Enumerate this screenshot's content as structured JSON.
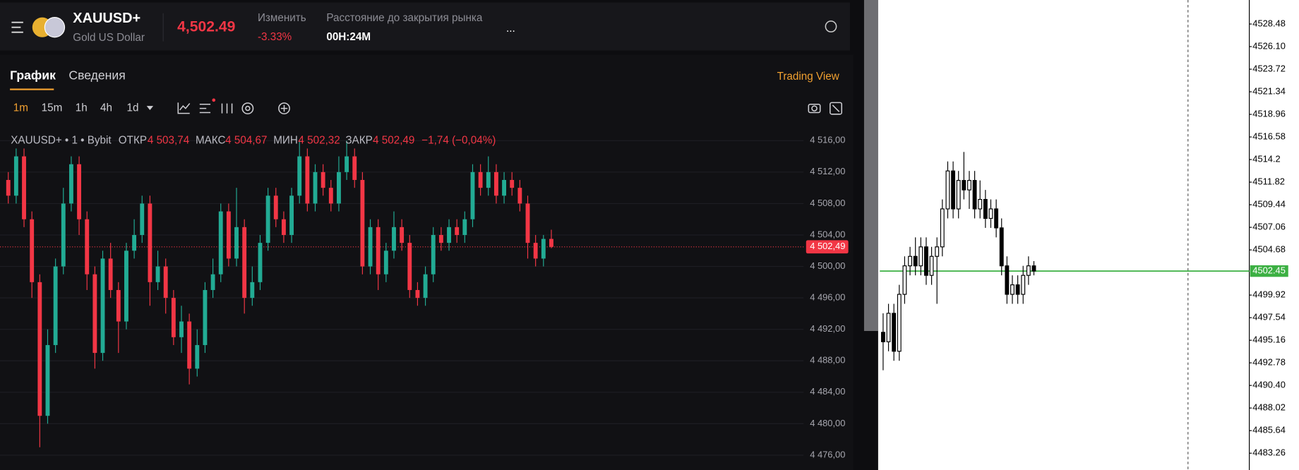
{
  "header": {
    "symbol": "XAUUSD+",
    "name": "Gold US Dollar",
    "price": "4,502.49",
    "change_label": "Изменить",
    "change": "-3.33%",
    "close_label": "Расстояние до закрытия рынка",
    "close_time": "00H:24M",
    "more": "..."
  },
  "tabs": [
    "График",
    "Сведения",
    "Trading View"
  ],
  "toolbar": {
    "timeframes": [
      "1m",
      "15m",
      "1h",
      "4h",
      "1d"
    ]
  },
  "chart_data": [
    {
      "type": "candlestick",
      "legend_line": [
        "XAUUSD+ • 1 • Bybit",
        "ОТКР",
        "4 503,74",
        "МАКС",
        "4 504,67",
        "МИН",
        "4 502,32",
        "ЗАКР",
        "4 502,49",
        "−1,74 (−0,04%)"
      ],
      "up_color": "#22ab94",
      "down_color": "#f23645",
      "grid": true,
      "ylim": [
        4474.11,
        4517.89
      ],
      "yticks": [
        {
          "value": 4516,
          "label": "4 516,00"
        },
        {
          "value": 4512,
          "label": "4 512,00"
        },
        {
          "value": 4508,
          "label": "4 508,00"
        },
        {
          "value": 4504,
          "label": "4 504,00"
        },
        {
          "value": 4500,
          "label": "4 500,00"
        },
        {
          "value": 4496,
          "label": "4 496,00"
        },
        {
          "value": 4492,
          "label": "4 492,00"
        },
        {
          "value": 4488,
          "label": "4 488,00"
        },
        {
          "value": 4484,
          "label": "4 484,00"
        },
        {
          "value": 4480,
          "label": "4 480,00"
        },
        {
          "value": 4476,
          "label": "4 476,00"
        }
      ],
      "price_line": {
        "value": 4502.49,
        "label": "4 502,49",
        "color": "#f23645"
      },
      "candles": [
        [
          4511,
          4512,
          4508,
          4509
        ],
        [
          4509,
          4515,
          4508,
          4514
        ],
        [
          4514,
          4515,
          4505,
          4506
        ],
        [
          4506,
          4507,
          4496,
          4498
        ],
        [
          4498,
          4499,
          4477,
          4481
        ],
        [
          4481,
          4492,
          4480,
          4490
        ],
        [
          4490,
          4501,
          4489,
          4500
        ],
        [
          4500,
          4510,
          4499,
          4508
        ],
        [
          4508,
          4514,
          4507,
          4513
        ],
        [
          4513,
          4514,
          4504,
          4506
        ],
        [
          4506,
          4507,
          4497,
          4499
        ],
        [
          4499,
          4500,
          4487,
          4489
        ],
        [
          4489,
          4502,
          4488,
          4501
        ],
        [
          4501,
          4503,
          4496,
          4497
        ],
        [
          4497,
          4498,
          4489,
          4493
        ],
        [
          4493,
          4503,
          4492,
          4502
        ],
        [
          4502,
          4506,
          4501,
          4504
        ],
        [
          4504,
          4509,
          4503,
          4508
        ],
        [
          4508,
          4509,
          4495,
          4498
        ],
        [
          4498,
          4502,
          4497,
          4500
        ],
        [
          4500,
          4501,
          4494,
          4496
        ],
        [
          4496,
          4497,
          4490,
          4491
        ],
        [
          4491,
          4495,
          4489,
          4493
        ],
        [
          4493,
          4494,
          4485,
          4487
        ],
        [
          4487,
          4492,
          4486,
          4490
        ],
        [
          4490,
          4498,
          4489,
          4497
        ],
        [
          4497,
          4501,
          4496,
          4499
        ],
        [
          4499,
          4508,
          4498,
          4507
        ],
        [
          4507,
          4508,
          4500,
          4501
        ],
        [
          4501,
          4510,
          4500,
          4505
        ],
        [
          4505,
          4506,
          4494,
          4496
        ],
        [
          4496,
          4500,
          4495,
          4498
        ],
        [
          4498,
          4504,
          4497,
          4503
        ],
        [
          4503,
          4510,
          4502,
          4509
        ],
        [
          4509,
          4510,
          4505,
          4506
        ],
        [
          4506,
          4507,
          4503,
          4504
        ],
        [
          4504,
          4510,
          4503,
          4509
        ],
        [
          4509,
          4516,
          4508,
          4514
        ],
        [
          4514,
          4515,
          4507,
          4508
        ],
        [
          4508,
          4513,
          4507,
          4512
        ],
        [
          4512,
          4513,
          4509,
          4510
        ],
        [
          4510,
          4511,
          4507,
          4508
        ],
        [
          4508,
          4514,
          4507,
          4512
        ],
        [
          4512,
          4516,
          4511,
          4514
        ],
        [
          4514,
          4515,
          4510,
          4511
        ],
        [
          4511,
          4512,
          4499,
          4500
        ],
        [
          4500,
          4506,
          4499,
          4505
        ],
        [
          4505,
          4506,
          4497,
          4499
        ],
        [
          4499,
          4503,
          4498,
          4502
        ],
        [
          4502,
          4507,
          4501,
          4505
        ],
        [
          4505,
          4506,
          4502,
          4503
        ],
        [
          4503,
          4504,
          4496,
          4497
        ],
        [
          4497,
          4498,
          4495,
          4496
        ],
        [
          4496,
          4500,
          4495,
          4499
        ],
        [
          4499,
          4505,
          4498,
          4504
        ],
        [
          4504,
          4505,
          4502,
          4503
        ],
        [
          4503,
          4506,
          4502,
          4505
        ],
        [
          4505,
          4506,
          4503,
          4504
        ],
        [
          4504,
          4507,
          4503,
          4506
        ],
        [
          4506,
          4513,
          4505,
          4512
        ],
        [
          4512,
          4513,
          4509,
          4510
        ],
        [
          4510,
          4514,
          4509,
          4512
        ],
        [
          4512,
          4513,
          4508,
          4509
        ],
        [
          4509,
          4512,
          4508,
          4511
        ],
        [
          4511,
          4512,
          4509,
          4510
        ],
        [
          4510,
          4511,
          4507,
          4508
        ],
        [
          4508,
          4509,
          4501,
          4503
        ],
        [
          4503,
          4504,
          4500,
          4501
        ],
        [
          4501,
          4504,
          4500,
          4503.5
        ],
        [
          4503.5,
          4504.67,
          4502.32,
          4502.49
        ]
      ]
    },
    {
      "type": "candlestick",
      "up_color": "#ffffff",
      "down_color": "#000000",
      "border_color": "#000000",
      "grid": false,
      "ylim": [
        4481.49,
        4531.01
      ],
      "yticks": [
        4528.48,
        {
          "value": 4526.1,
          "label": "4526.10"
        },
        4523.72,
        4521.34,
        4518.96,
        4516.58,
        4514.2,
        4511.82,
        4509.44,
        4507.06,
        4504.68,
        4499.92,
        4497.54,
        4495.16,
        4492.78,
        {
          "value": 4490.4,
          "label": "4490.40"
        },
        4488.02,
        4485.64,
        4483.26
      ],
      "price_line": {
        "value": 4502.45,
        "color": "#3cb043"
      },
      "candles": [
        [
          4496,
          4498,
          4492,
          4495
        ],
        [
          4495,
          4499,
          4494,
          4498
        ],
        [
          4498,
          4499,
          4493,
          4494
        ],
        [
          4494,
          4501,
          4493,
          4500
        ],
        [
          4500,
          4504,
          4499,
          4503
        ],
        [
          4503,
          4505,
          4502,
          4504
        ],
        [
          4504,
          4506,
          4502,
          4503
        ],
        [
          4503,
          4506,
          4502,
          4505
        ],
        [
          4505,
          4506,
          4501,
          4502
        ],
        [
          4502,
          4505,
          4501,
          4504
        ],
        [
          4504,
          4506,
          4499,
          4505
        ],
        [
          4505,
          4510,
          4504,
          4509
        ],
        [
          4509,
          4514,
          4508,
          4513
        ],
        [
          4513,
          4514,
          4508,
          4509
        ],
        [
          4509,
          4513,
          4508,
          4512
        ],
        [
          4512,
          4515,
          4510,
          4511
        ],
        [
          4511,
          4513,
          4509,
          4512
        ],
        [
          4512,
          4513,
          4508,
          4509
        ],
        [
          4509,
          4512,
          4508,
          4510
        ],
        [
          4510,
          4511,
          4507,
          4508
        ],
        [
          4508,
          4510,
          4507,
          4509
        ],
        [
          4509,
          4510,
          4506,
          4507
        ],
        [
          4507,
          4508,
          4502,
          4503
        ],
        [
          4503,
          4504,
          4499,
          4500
        ],
        [
          4500,
          4502,
          4499,
          4501
        ],
        [
          4501,
          4502,
          4499,
          4500
        ],
        [
          4500,
          4503,
          4499,
          4502
        ],
        [
          4502,
          4504,
          4501,
          4503
        ],
        [
          4503,
          4503.5,
          4502,
          4502.45
        ]
      ]
    }
  ]
}
